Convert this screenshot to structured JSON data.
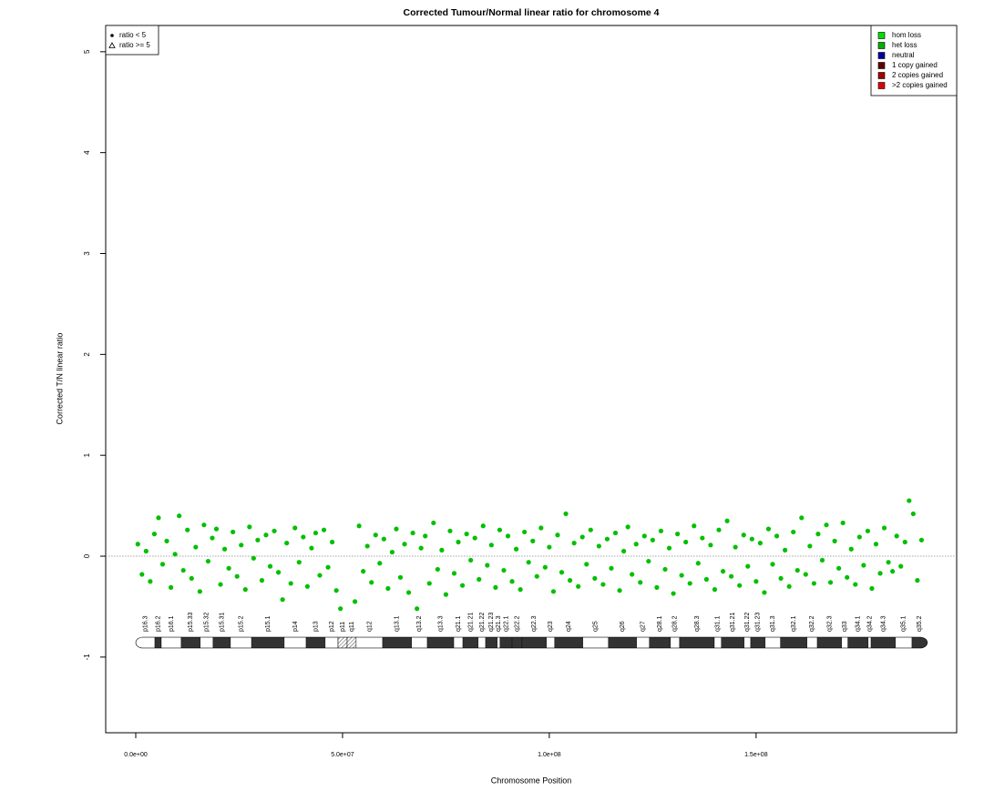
{
  "chart_data": {
    "type": "scatter",
    "title": "Corrected Tumour/Normal linear ratio for chromosome  4",
    "x_label": "Chromosome Position",
    "y_label": "Corrected T/N linear ratio",
    "xlim": [
      -7270000,
      198500000
    ],
    "ylim": [
      -1.75,
      5.26
    ],
    "xticks": [
      {
        "value": 0,
        "label": "0.0e+00"
      },
      {
        "value": 50000000,
        "label": "5.0e+07"
      },
      {
        "value": 100000000,
        "label": "1.0e+08"
      },
      {
        "value": 150000000,
        "label": "1.5e+08"
      }
    ],
    "yticks": [
      -1,
      0,
      1,
      2,
      3,
      4,
      5
    ],
    "reference_line": 0,
    "color": "#00c000",
    "x": [
      500000.0,
      1500000.0,
      2500000.0,
      3500000.0,
      4500000.0,
      5500000.0,
      6500000.0,
      7500000.0,
      8500000.0,
      9500000.0,
      10500000.0,
      11500000.0,
      12500000.0,
      13500000.0,
      14500000.0,
      15500000.0,
      16500000.0,
      17500000.0,
      18500000.0,
      19500000.0,
      20500000.0,
      21500000.0,
      22500000.0,
      23500000.0,
      24500000.0,
      25500000.0,
      26500000.0,
      27500000.0,
      28500000.0,
      29500000.0,
      30500000.0,
      31500000.0,
      32500000.0,
      33500000.0,
      34500000.0,
      35500000.0,
      36500000.0,
      37500000.0,
      38500000.0,
      39500000.0,
      40500000.0,
      41500000.0,
      42500000.0,
      43500000.0,
      44500000.0,
      45500000.0,
      46500000.0,
      47500000.0,
      48500000.0,
      49500000.0,
      53000000.0,
      54000000.0,
      55000000.0,
      56000000.0,
      57000000.0,
      58000000.0,
      59000000.0,
      60000000.0,
      61000000.0,
      62000000.0,
      63000000.0,
      64000000.0,
      65000000.0,
      66000000.0,
      67000000.0,
      68000000.0,
      69000000.0,
      70000000.0,
      71000000.0,
      72000000.0,
      73000000.0,
      74000000.0,
      75000000.0,
      76000000.0,
      77000000.0,
      78000000.0,
      79000000.0,
      80000000.0,
      81000000.0,
      82000000.0,
      83000000.0,
      84000000.0,
      85000000.0,
      86000000.0,
      87000000.0,
      88000000.0,
      89000000.0,
      90000000.0,
      91000000.0,
      92000000.0,
      93000000.0,
      94000000.0,
      95000000.0,
      96000000.0,
      97000000.0,
      98000000.0,
      99000000.0,
      100000000.0,
      101000000.0,
      102000000.0,
      103000000.0,
      104000000.0,
      105000000.0,
      106000000.0,
      107000000.0,
      108000000.0,
      109000000.0,
      110000000.0,
      111000000.0,
      112000000.0,
      113000000.0,
      114000000.0,
      115000000.0,
      116000000.0,
      117000000.0,
      118000000.0,
      119000000.0,
      120000000.0,
      121000000.0,
      122000000.0,
      123000000.0,
      124000000.0,
      125000000.0,
      126000000.0,
      127000000.0,
      128000000.0,
      129000000.0,
      130000000.0,
      131000000.0,
      132000000.0,
      133000000.0,
      134000000.0,
      135000000.0,
      136000000.0,
      137000000.0,
      138000000.0,
      139000000.0,
      140000000.0,
      141000000.0,
      142000000.0,
      143000000.0,
      144000000.0,
      145000000.0,
      146000000.0,
      147000000.0,
      148000000.0,
      149000000.0,
      150000000.0,
      151000000.0,
      152000000.0,
      153000000.0,
      154000000.0,
      155000000.0,
      156000000.0,
      157000000.0,
      158000000.0,
      159000000.0,
      160000000.0,
      161000000.0,
      162000000.0,
      163000000.0,
      164000000.0,
      165000000.0,
      166000000.0,
      167000000.0,
      168000000.0,
      169000000.0,
      170000000.0,
      171000000.0,
      172000000.0,
      173000000.0,
      174000000.0,
      175000000.0,
      176000000.0,
      177000000.0,
      178000000.0,
      179000000.0,
      180000000.0,
      181000000.0,
      182000000.0,
      183000000.0,
      184000000.0,
      185000000.0,
      186000000.0,
      187000000.0,
      188000000.0,
      189000000.0,
      190000000.0
    ],
    "values": [
      0.12,
      -0.18,
      0.05,
      -0.25,
      0.22,
      0.38,
      -0.08,
      0.15,
      -0.31,
      0.02,
      0.4,
      -0.14,
      0.26,
      -0.22,
      0.09,
      -0.35,
      0.31,
      -0.05,
      0.18,
      0.27,
      -0.28,
      0.07,
      -0.12,
      0.24,
      -0.2,
      0.11,
      -0.33,
      0.29,
      -0.02,
      0.16,
      -0.24,
      0.21,
      -0.1,
      0.25,
      -0.16,
      -0.43,
      0.13,
      -0.27,
      0.28,
      -0.06,
      0.19,
      -0.3,
      0.08,
      0.23,
      -0.19,
      0.26,
      -0.11,
      0.14,
      -0.34,
      -0.52,
      -0.45,
      0.3,
      -0.15,
      0.1,
      -0.26,
      0.21,
      -0.07,
      0.17,
      -0.32,
      0.04,
      0.27,
      -0.21,
      0.12,
      -0.36,
      0.23,
      -0.52,
      0.08,
      0.2,
      -0.27,
      0.33,
      -0.13,
      0.06,
      -0.38,
      0.25,
      -0.17,
      0.14,
      -0.29,
      0.22,
      -0.04,
      0.18,
      -0.23,
      0.3,
      -0.09,
      0.11,
      -0.31,
      0.26,
      -0.14,
      0.2,
      -0.25,
      0.07,
      -0.33,
      0.24,
      -0.06,
      0.15,
      -0.2,
      0.28,
      -0.11,
      0.09,
      -0.35,
      0.21,
      -0.16,
      0.42,
      -0.24,
      0.13,
      -0.3,
      0.19,
      -0.08,
      0.26,
      -0.22,
      0.1,
      -0.28,
      0.17,
      -0.12,
      0.23,
      -0.34,
      0.05,
      0.29,
      -0.18,
      0.12,
      -0.26,
      0.2,
      -0.05,
      0.16,
      -0.31,
      0.25,
      -0.13,
      0.08,
      -0.37,
      0.22,
      -0.19,
      0.14,
      -0.27,
      0.3,
      -0.07,
      0.18,
      -0.23,
      0.11,
      -0.33,
      0.26,
      -0.15,
      0.35,
      -0.2,
      0.09,
      -0.29,
      0.21,
      -0.1,
      0.17,
      -0.25,
      0.13,
      -0.36,
      0.27,
      -0.08,
      0.2,
      -0.22,
      0.06,
      -0.3,
      0.24,
      -0.14,
      0.38,
      -0.18,
      0.1,
      -0.27,
      0.22,
      -0.04,
      0.31,
      -0.26,
      0.15,
      -0.12,
      0.33,
      -0.21,
      0.07,
      -0.28,
      0.19,
      -0.09,
      0.25,
      -0.32,
      0.12,
      -0.17,
      0.28,
      -0.06,
      -0.15,
      0.2,
      -0.1,
      0.14,
      0.55,
      0.42,
      -0.24,
      0.16
    ],
    "shape_legend": [
      {
        "label": "ratio < 5",
        "symbol": "dot"
      },
      {
        "label": "ratio >= 5",
        "symbol": "triangle"
      }
    ],
    "status_legend": [
      {
        "label": "hom loss",
        "color": "#00e000"
      },
      {
        "label": "het loss",
        "color": "#00b000"
      },
      {
        "label": "neutral",
        "color": "#0000a0"
      },
      {
        "label": "1 copy gained",
        "color": "#600000"
      },
      {
        "label": "2 copies gained",
        "color": "#a00000"
      },
      {
        "label": ">2 copies gained",
        "color": "#e00000"
      }
    ],
    "bands": [
      {
        "label": "p16.3",
        "start": 0,
        "end": 4630000.0,
        "stain": "gneg"
      },
      {
        "label": "p16.2",
        "start": 4630000.0,
        "end": 6170000.0,
        "stain": "gpos"
      },
      {
        "label": "p16.1",
        "start": 6170000.0,
        "end": 11000000.0,
        "stain": "gneg"
      },
      {
        "label": "p15.33",
        "start": 11000000.0,
        "end": 15600000.0,
        "stain": "gpos"
      },
      {
        "label": "p15.32",
        "start": 15600000.0,
        "end": 18700000.0,
        "stain": "gneg"
      },
      {
        "label": "p15.31",
        "start": 18700000.0,
        "end": 22900000.0,
        "stain": "gpos"
      },
      {
        "label": "p15.2",
        "start": 22900000.0,
        "end": 28000000.0,
        "stain": "gneg"
      },
      {
        "label": "p15.1",
        "start": 28000000.0,
        "end": 35900000.0,
        "stain": "gpos"
      },
      {
        "label": "p14",
        "start": 35900000.0,
        "end": 41200000.0,
        "stain": "gneg"
      },
      {
        "label": "p13",
        "start": 41200000.0,
        "end": 45800000.0,
        "stain": "gpos"
      },
      {
        "label": "p12",
        "start": 45800000.0,
        "end": 48900000.0,
        "stain": "gneg"
      },
      {
        "label": "p11",
        "start": 48900000.0,
        "end": 51100000.0,
        "stain": "acen"
      },
      {
        "label": "q11",
        "start": 51100000.0,
        "end": 53300000.0,
        "stain": "acen"
      },
      {
        "label": "q12",
        "start": 53300000.0,
        "end": 59700000.0,
        "stain": "gneg"
      },
      {
        "label": "q13.1",
        "start": 59700000.0,
        "end": 66700000.0,
        "stain": "gpos"
      },
      {
        "label": "q13.2",
        "start": 66700000.0,
        "end": 70500000.0,
        "stain": "gneg"
      },
      {
        "label": "q13.3",
        "start": 70500000.0,
        "end": 76900000.0,
        "stain": "gpos"
      },
      {
        "label": "q21.1",
        "start": 76900000.0,
        "end": 79100000.0,
        "stain": "gneg"
      },
      {
        "label": "q21.21",
        "start": 79100000.0,
        "end": 82800000.0,
        "stain": "gpos"
      },
      {
        "label": "q21.22",
        "start": 82800000.0,
        "end": 84600000.0,
        "stain": "gneg"
      },
      {
        "label": "q21.23",
        "start": 84600000.0,
        "end": 87400000.0,
        "stain": "gpos"
      },
      {
        "label": "q21.3",
        "start": 87400000.0,
        "end": 88100000.0,
        "stain": "gneg"
      },
      {
        "label": "q22.1",
        "start": 88100000.0,
        "end": 91000000.0,
        "stain": "gpos"
      },
      {
        "label": "q22.2",
        "start": 91000000.0,
        "end": 93400000.0,
        "stain": "gpos"
      },
      {
        "label": "q22.3",
        "start": 93400000.0,
        "end": 99300000.0,
        "stain": "gpos"
      },
      {
        "label": "q23",
        "start": 99300000.0,
        "end": 101300000.0,
        "stain": "gneg"
      },
      {
        "label": "q24",
        "start": 101300000.0,
        "end": 108100000.0,
        "stain": "gpos"
      },
      {
        "label": "q25",
        "start": 108100000.0,
        "end": 114300000.0,
        "stain": "gneg"
      },
      {
        "label": "q26",
        "start": 114300000.0,
        "end": 121100000.0,
        "stain": "gpos"
      },
      {
        "label": "q27",
        "start": 121100000.0,
        "end": 124200000.0,
        "stain": "gneg"
      },
      {
        "label": "q28.1",
        "start": 124200000.0,
        "end": 129300000.0,
        "stain": "gpos"
      },
      {
        "label": "q28.2",
        "start": 129300000.0,
        "end": 131500000.0,
        "stain": "gneg"
      },
      {
        "label": "q28.3",
        "start": 131500000.0,
        "end": 139900000.0,
        "stain": "gpos"
      },
      {
        "label": "q31.1",
        "start": 139900000.0,
        "end": 141600000.0,
        "stain": "gneg"
      },
      {
        "label": "q31.21",
        "start": 141600000.0,
        "end": 147100000.0,
        "stain": "gpos"
      },
      {
        "label": "q31.22",
        "start": 147100000.0,
        "end": 148700000.0,
        "stain": "gneg"
      },
      {
        "label": "q31.23",
        "start": 148700000.0,
        "end": 152200000.0,
        "stain": "gpos"
      },
      {
        "label": "q31.3",
        "start": 152200000.0,
        "end": 155900000.0,
        "stain": "gneg"
      },
      {
        "label": "q32.1",
        "start": 155900000.0,
        "end": 162300000.0,
        "stain": "gpos"
      },
      {
        "label": "q32.2",
        "start": 162300000.0,
        "end": 164800000.0,
        "stain": "gneg"
      },
      {
        "label": "q32.3",
        "start": 164800000.0,
        "end": 170700000.0,
        "stain": "gpos"
      },
      {
        "label": "q33",
        "start": 170700000.0,
        "end": 172200000.0,
        "stain": "gneg"
      },
      {
        "label": "q34.1",
        "start": 172200000.0,
        "end": 177100000.0,
        "stain": "gpos"
      },
      {
        "label": "q34.2",
        "start": 177100000.0,
        "end": 177800000.0,
        "stain": "gneg"
      },
      {
        "label": "q34.3",
        "start": 177800000.0,
        "end": 183700000.0,
        "stain": "gpos"
      },
      {
        "label": "q35.1",
        "start": 183700000.0,
        "end": 187700000.0,
        "stain": "gneg"
      },
      {
        "label": "q35.2",
        "start": 187700000.0,
        "end": 191400000.0,
        "stain": "gpos"
      }
    ]
  }
}
